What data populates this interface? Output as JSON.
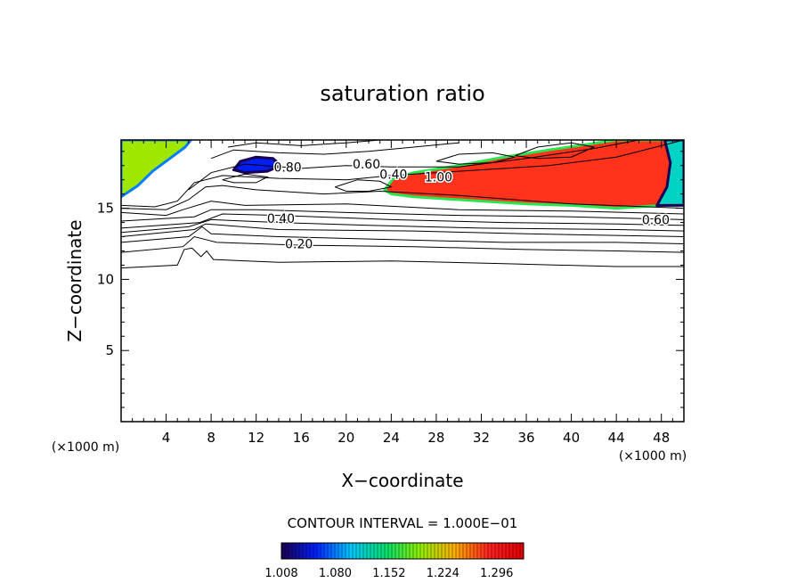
{
  "chart_data": {
    "type": "heatmap",
    "title": "saturation ratio",
    "xlabel": "X−coordinate",
    "ylabel": "Z−coordinate",
    "x_unit_left": "(×1000 m)",
    "x_unit_right": "(×1000 m)",
    "xlim": [
      0,
      50
    ],
    "ylim": [
      0,
      19.8
    ],
    "x_ticks": [
      {
        "value": 4,
        "label": "4"
      },
      {
        "value": 8,
        "label": "8"
      },
      {
        "value": 12,
        "label": "12"
      },
      {
        "value": 16,
        "label": "16"
      },
      {
        "value": 20,
        "label": "20"
      },
      {
        "value": 24,
        "label": "24"
      },
      {
        "value": 28,
        "label": "28"
      },
      {
        "value": 32,
        "label": "32"
      },
      {
        "value": 36,
        "label": "36"
      },
      {
        "value": 40,
        "label": "40"
      },
      {
        "value": 44,
        "label": "44"
      },
      {
        "value": 48,
        "label": "48"
      }
    ],
    "y_ticks": [
      {
        "value": 5,
        "label": "5"
      },
      {
        "value": 10,
        "label": "10"
      },
      {
        "value": 15,
        "label": "15"
      }
    ],
    "contour_interval_text": "CONTOUR INTERVAL = 1.000E−01",
    "contour_labels": [
      {
        "text": "0.20",
        "x": 15.8,
        "z": 12.5
      },
      {
        "text": "0.40",
        "x": 14.2,
        "z": 14.3
      },
      {
        "text": "0.60",
        "x": 47.5,
        "z": 14.2
      },
      {
        "text": "0.80",
        "x": 14.8,
        "z": 17.9
      },
      {
        "text": "0.60",
        "x": 21.8,
        "z": 18.1
      },
      {
        "text": "0.40",
        "x": 24.2,
        "z": 17.4
      },
      {
        "text": "1.00",
        "x": 28.2,
        "z": 17.2
      }
    ],
    "contour_lines": [
      [
        [
          0,
          10.8
        ],
        [
          5,
          11.0
        ],
        [
          5.6,
          12.1
        ],
        [
          6.3,
          12.2
        ],
        [
          7.1,
          11.6
        ],
        [
          7.6,
          12.0
        ],
        [
          8.2,
          11.4
        ],
        [
          14,
          11.2
        ],
        [
          24,
          11.3
        ],
        [
          34,
          11.1
        ],
        [
          44,
          10.9
        ],
        [
          50,
          10.9
        ]
      ],
      [
        [
          0,
          11.9
        ],
        [
          5.5,
          12.3
        ],
        [
          6.5,
          13.0
        ],
        [
          7.5,
          12.8
        ],
        [
          8.5,
          12.6
        ],
        [
          16,
          12.4
        ],
        [
          26,
          12.3
        ],
        [
          36,
          12.1
        ],
        [
          44,
          12.0
        ],
        [
          50,
          11.9
        ]
      ],
      [
        [
          0,
          12.6
        ],
        [
          6,
          13.0
        ],
        [
          7.2,
          13.7
        ],
        [
          8,
          13.2
        ],
        [
          14,
          13.0
        ],
        [
          24,
          12.8
        ],
        [
          34,
          12.6
        ],
        [
          44,
          12.6
        ],
        [
          50,
          12.5
        ]
      ],
      [
        [
          0,
          13.0
        ],
        [
          6.5,
          13.5
        ],
        [
          7.5,
          13.9
        ],
        [
          14,
          13.5
        ],
        [
          26,
          13.4
        ],
        [
          36,
          13.2
        ],
        [
          50,
          13.0
        ]
      ],
      [
        [
          0,
          13.3
        ],
        [
          6,
          13.7
        ],
        [
          8,
          14.2
        ],
        [
          14,
          14.0
        ],
        [
          22,
          13.8
        ],
        [
          32,
          13.6
        ],
        [
          44,
          13.5
        ],
        [
          50,
          13.4
        ]
      ],
      [
        [
          0,
          13.6
        ],
        [
          7,
          14.0
        ],
        [
          9,
          14.6
        ],
        [
          14,
          14.5
        ],
        [
          24,
          14.2
        ],
        [
          34,
          14.0
        ],
        [
          44,
          13.9
        ],
        [
          50,
          13.8
        ]
      ],
      [
        [
          0,
          14.1
        ],
        [
          6.5,
          14.4
        ],
        [
          8,
          14.9
        ],
        [
          12,
          14.9
        ],
        [
          20,
          14.7
        ],
        [
          30,
          14.5
        ],
        [
          40,
          14.4
        ],
        [
          50,
          14.2
        ]
      ],
      [
        [
          0,
          14.7
        ],
        [
          4,
          14.5
        ],
        [
          5.5,
          14.9
        ],
        [
          8,
          15.5
        ],
        [
          11,
          15.2
        ],
        [
          20,
          15.3
        ],
        [
          30,
          14.9
        ],
        [
          40,
          14.8
        ],
        [
          50,
          14.6
        ]
      ],
      [
        [
          0,
          15.0
        ],
        [
          4,
          14.9
        ],
        [
          6,
          15.6
        ],
        [
          7.5,
          16.5
        ],
        [
          9,
          16.6
        ],
        [
          12,
          16.3
        ],
        [
          18,
          16.0
        ],
        [
          23,
          16.2
        ],
        [
          30,
          15.9
        ],
        [
          40,
          15.3
        ],
        [
          50,
          15.0
        ]
      ],
      [
        [
          0,
          15.2
        ],
        [
          3,
          15.1
        ],
        [
          5,
          15.5
        ],
        [
          6.5,
          16.8
        ],
        [
          9,
          17.3
        ],
        [
          14,
          17.1
        ],
        [
          20,
          17.0
        ],
        [
          24,
          17.3
        ],
        [
          30,
          17.6
        ],
        [
          38,
          18.0
        ],
        [
          44,
          18.6
        ],
        [
          50,
          19.8
        ]
      ],
      [
        [
          6,
          16.3
        ],
        [
          8,
          17.5
        ],
        [
          11,
          18.1
        ],
        [
          16,
          17.8
        ],
        [
          20,
          18.0
        ],
        [
          24,
          17.9
        ],
        [
          30,
          17.9
        ],
        [
          36,
          18.5
        ],
        [
          42,
          19.2
        ],
        [
          46,
          19.8
        ]
      ],
      [
        [
          8,
          18.5
        ],
        [
          10,
          19.1
        ],
        [
          14,
          18.9
        ],
        [
          18,
          18.8
        ],
        [
          22,
          19.0
        ],
        [
          26,
          19.3
        ],
        [
          30,
          19.6
        ]
      ],
      [
        [
          9.5,
          19.3
        ],
        [
          12,
          19.6
        ],
        [
          16,
          19.4
        ],
        [
          20,
          19.6
        ],
        [
          23,
          19.8
        ]
      ]
    ],
    "closed_contours": [
      [
        [
          35,
          18.7
        ],
        [
          37,
          19.3
        ],
        [
          40,
          19.6
        ],
        [
          42,
          19.3
        ],
        [
          40,
          18.6
        ],
        [
          37,
          18.5
        ],
        [
          35,
          18.7
        ]
      ],
      [
        [
          28,
          18.3
        ],
        [
          30,
          18.8
        ],
        [
          33,
          18.9
        ],
        [
          35,
          18.6
        ],
        [
          33,
          18.2
        ],
        [
          30,
          18.1
        ],
        [
          28,
          18.3
        ]
      ],
      [
        [
          19,
          16.5
        ],
        [
          21,
          17.0
        ],
        [
          23,
          16.9
        ],
        [
          24,
          16.5
        ],
        [
          22,
          16.2
        ],
        [
          20,
          16.2
        ],
        [
          19,
          16.5
        ]
      ],
      [
        [
          9,
          17.0
        ],
        [
          11,
          17.4
        ],
        [
          13,
          17.2
        ],
        [
          12,
          16.8
        ],
        [
          10,
          16.8
        ],
        [
          9,
          17.0
        ]
      ]
    ],
    "shaded_regions": [
      {
        "name": "upper-left",
        "value": 1.2,
        "outline": [
          [
            0,
            15.8
          ],
          [
            1.5,
            16.6
          ],
          [
            2.8,
            17.6
          ],
          [
            4.5,
            18.6
          ],
          [
            5.7,
            19.3
          ],
          [
            6.2,
            19.8
          ],
          [
            0,
            19.8
          ]
        ]
      },
      {
        "name": "blob",
        "value": 1.05,
        "outline": [
          [
            10,
            17.7
          ],
          [
            10.6,
            18.3
          ],
          [
            12,
            18.6
          ],
          [
            13.5,
            18.5
          ],
          [
            14.2,
            18.0
          ],
          [
            13,
            17.6
          ],
          [
            11,
            17.5
          ],
          [
            10,
            17.7
          ]
        ]
      },
      {
        "name": "main-plume",
        "value": 1.28,
        "outline": [
          [
            23.4,
            16.3
          ],
          [
            24.2,
            17.1
          ],
          [
            26,
            17.5
          ],
          [
            30,
            18.0
          ],
          [
            34,
            18.6
          ],
          [
            38,
            19.1
          ],
          [
            41.5,
            19.5
          ],
          [
            44,
            19.8
          ],
          [
            50,
            19.8
          ],
          [
            50,
            15.3
          ],
          [
            48,
            15.2
          ],
          [
            44,
            15.0
          ],
          [
            40,
            15.2
          ],
          [
            36,
            15.3
          ],
          [
            32,
            15.5
          ],
          [
            28,
            15.7
          ],
          [
            26,
            15.8
          ],
          [
            24,
            16.0
          ],
          [
            23.4,
            16.3
          ]
        ]
      },
      {
        "name": "right-edge",
        "value": 1.12,
        "outline": [
          [
            47.6,
            15.2
          ],
          [
            48.5,
            16.5
          ],
          [
            48.8,
            18.2
          ],
          [
            48.3,
            19.8
          ],
          [
            50,
            19.8
          ],
          [
            50,
            15.2
          ],
          [
            47.6,
            15.2
          ]
        ]
      }
    ],
    "colorbar": {
      "vmin": 1.008,
      "vmax": 1.332,
      "ticks": [
        {
          "value": 1.008,
          "label": "1.008"
        },
        {
          "value": 1.08,
          "label": "1.080"
        },
        {
          "value": 1.152,
          "label": "1.152"
        },
        {
          "value": 1.224,
          "label": "1.224"
        },
        {
          "value": 1.296,
          "label": "1.296"
        }
      ],
      "colors": [
        "#1a0050",
        "#0020ff",
        "#00c8ff",
        "#00e070",
        "#90f000",
        "#ffb000",
        "#ff2020",
        "#e00000"
      ]
    }
  }
}
